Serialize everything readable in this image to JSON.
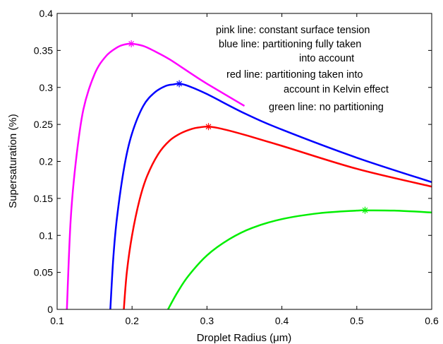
{
  "chart_data": {
    "type": "line",
    "title": "",
    "xlabel": "Droplet Radius (μm)",
    "ylabel": "Supersaturation (%)",
    "xlim": [
      0.1,
      0.6
    ],
    "ylim": [
      0,
      0.4
    ],
    "xticks": [
      "0.1",
      "0.2",
      "0.3",
      "0.4",
      "0.5",
      "0.6"
    ],
    "yticks": [
      "0",
      "0.05",
      "0.1",
      "0.15",
      "0.2",
      "0.25",
      "0.3",
      "0.35",
      "0.4"
    ],
    "grid": false,
    "annotation_lines": [
      "pink line: constant surface tension",
      "blue line: partitioning fully taken",
      "into account",
      "red line: partitioning taken into",
      "account in Kelvin effect",
      "green line: no partitioning"
    ],
    "series": [
      {
        "color": "#ff00ff",
        "x": [
          0.113,
          0.118,
          0.125,
          0.135,
          0.15,
          0.165,
          0.18,
          0.19,
          0.2,
          0.215,
          0.23,
          0.25,
          0.28,
          0.3,
          0.35
        ],
        "y": [
          0.0,
          0.12,
          0.2,
          0.27,
          0.318,
          0.342,
          0.354,
          0.358,
          0.359,
          0.356,
          0.349,
          0.338,
          0.318,
          0.305,
          0.275
        ],
        "peak": [
          0.199,
          0.359
        ]
      },
      {
        "color": "#0000ff",
        "x": [
          0.171,
          0.175,
          0.18,
          0.19,
          0.2,
          0.215,
          0.23,
          0.245,
          0.255,
          0.263,
          0.275,
          0.3,
          0.35,
          0.4,
          0.5,
          0.6
        ],
        "y": [
          0.0,
          0.07,
          0.125,
          0.195,
          0.238,
          0.275,
          0.293,
          0.302,
          0.304,
          0.305,
          0.302,
          0.291,
          0.265,
          0.243,
          0.205,
          0.172
        ],
        "peak": [
          0.263,
          0.305
        ]
      },
      {
        "color": "#ff0000",
        "x": [
          0.189,
          0.193,
          0.2,
          0.21,
          0.22,
          0.235,
          0.25,
          0.265,
          0.28,
          0.29,
          0.302,
          0.32,
          0.35,
          0.4,
          0.5,
          0.6
        ],
        "y": [
          0.0,
          0.05,
          0.1,
          0.148,
          0.18,
          0.21,
          0.228,
          0.238,
          0.244,
          0.246,
          0.247,
          0.244,
          0.236,
          0.221,
          0.19,
          0.166
        ],
        "peak": [
          0.302,
          0.247
        ]
      },
      {
        "color": "#00ee00",
        "x": [
          0.248,
          0.26,
          0.275,
          0.3,
          0.33,
          0.36,
          0.4,
          0.45,
          0.5,
          0.511,
          0.55,
          0.6
        ],
        "y": [
          0.0,
          0.022,
          0.045,
          0.073,
          0.095,
          0.11,
          0.122,
          0.13,
          0.1335,
          0.1338,
          0.1335,
          0.131
        ],
        "peak": [
          0.511,
          0.134
        ]
      }
    ]
  }
}
